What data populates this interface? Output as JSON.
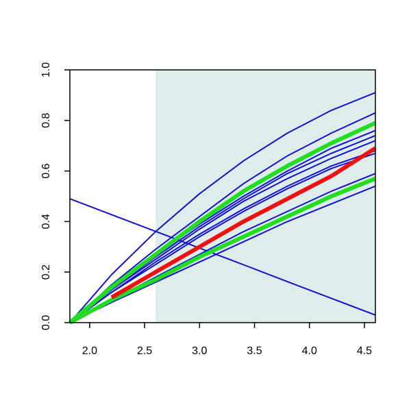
{
  "chart_data": {
    "type": "line",
    "x": [
      1.82,
      2.2,
      2.6,
      3.0,
      3.4,
      3.8,
      4.2,
      4.6
    ],
    "xlim": [
      1.82,
      4.6
    ],
    "ylim": [
      0,
      1
    ],
    "xticks": [
      {
        "value": 2,
        "label": "2.0"
      },
      {
        "value": 2.5,
        "label": "2.5"
      },
      {
        "value": 3,
        "label": "3.0"
      },
      {
        "value": 3.5,
        "label": "3.5"
      },
      {
        "value": 4,
        "label": "4.0"
      },
      {
        "value": 4.5,
        "label": "4.5"
      }
    ],
    "yticks": [
      {
        "value": 0,
        "label": "0.0"
      },
      {
        "value": 0.2,
        "label": "0.2"
      },
      {
        "value": 0.4,
        "label": "0.4"
      },
      {
        "value": 0.6,
        "label": "0.6"
      },
      {
        "value": 0.8,
        "label": "0.8"
      },
      {
        "value": 1,
        "label": "1.0"
      }
    ],
    "shaded_xrange": [
      2.6,
      4.6
    ],
    "shade_color": "#deecec",
    "series": [
      {
        "color": "#1010d0",
        "line_width": 2,
        "values": [
          0,
          0.19,
          0.36,
          0.51,
          0.64,
          0.75,
          0.84,
          0.91
        ]
      },
      {
        "color": "#1010d0",
        "line_width": 2,
        "values": [
          0,
          0.15,
          0.29,
          0.42,
          0.55,
          0.66,
          0.75,
          0.83
        ]
      },
      {
        "color": "#1010d0",
        "line_width": 2,
        "values": [
          0,
          0.14,
          0.27,
          0.39,
          0.5,
          0.6,
          0.69,
          0.76
        ]
      },
      {
        "color": "#1010d0",
        "line_width": 2,
        "values": [
          0,
          0.13,
          0.26,
          0.38,
          0.49,
          0.59,
          0.67,
          0.74
        ]
      },
      {
        "color": "#1010d0",
        "line_width": 2,
        "values": [
          0,
          0.13,
          0.25,
          0.37,
          0.48,
          0.57,
          0.65,
          0.72
        ]
      },
      {
        "color": "#1010d0",
        "line_width": 2,
        "values": [
          0,
          0.12,
          0.24,
          0.35,
          0.45,
          0.54,
          0.62,
          0.68
        ]
      },
      {
        "color": "#1010d0",
        "line_width": 2,
        "values": [
          0,
          0.12,
          0.23,
          0.34,
          0.44,
          0.53,
          0.61,
          0.67
        ]
      },
      {
        "color": "#1010d0",
        "line_width": 2,
        "values": [
          0,
          0.09,
          0.18,
          0.27,
          0.36,
          0.44,
          0.52,
          0.59
        ]
      },
      {
        "color": "#1010d0",
        "line_width": 2,
        "values": [
          0,
          0.08,
          0.16,
          0.24,
          0.32,
          0.4,
          0.47,
          0.54
        ]
      },
      {
        "color": "#1010d0",
        "line_width": 2,
        "values": [
          0.49,
          0.427,
          0.361,
          0.295,
          0.229,
          0.162,
          0.096,
          0.03
        ]
      },
      {
        "color": "#22dd22",
        "line_width": 6,
        "values": [
          0,
          0.14,
          0.27,
          0.4,
          0.52,
          0.62,
          0.71,
          0.79
        ]
      },
      {
        "color": "#22dd22",
        "line_width": 6,
        "values": [
          0,
          0.09,
          0.17,
          0.26,
          0.34,
          0.42,
          0.5,
          0.57
        ]
      },
      {
        "color": "#ee1111",
        "line_width": 6,
        "values": [
          null,
          0.1,
          0.2,
          0.3,
          0.4,
          0.49,
          0.58,
          0.69
        ]
      }
    ]
  }
}
